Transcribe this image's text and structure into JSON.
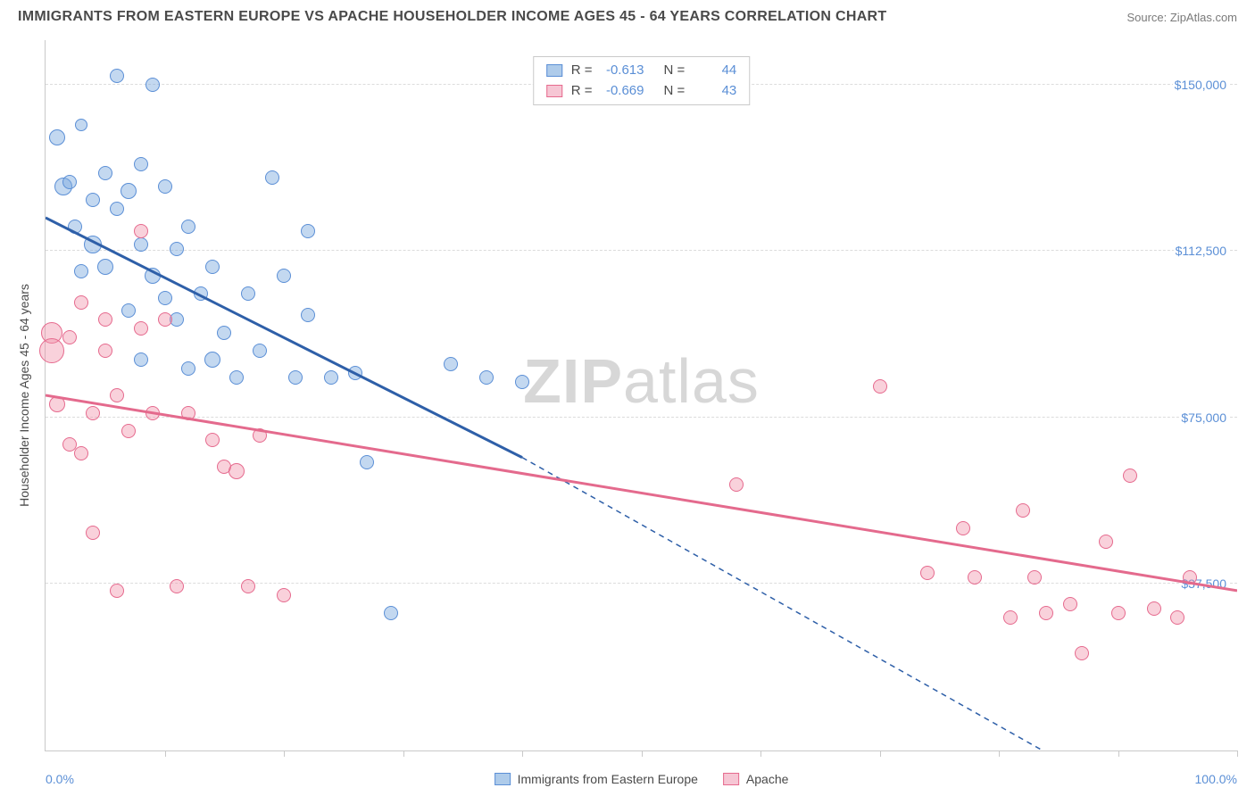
{
  "title": "IMMIGRANTS FROM EASTERN EUROPE VS APACHE HOUSEHOLDER INCOME AGES 45 - 64 YEARS CORRELATION CHART",
  "source_label": "Source: ZipAtlas.com",
  "watermark": {
    "bold": "ZIP",
    "rest": "atlas"
  },
  "chart": {
    "type": "scatter",
    "background_color": "#ffffff",
    "grid_color": "#dcdcdc",
    "axis_color": "#c9c9c9",
    "label_color": "#5b8fd6",
    "text_color": "#4a4a4a",
    "x": {
      "min": 0,
      "max": 100,
      "ticks_pct": [
        10,
        20,
        30,
        40,
        50,
        60,
        70,
        80,
        90,
        100
      ],
      "start_label": "0.0%",
      "end_label": "100.0%"
    },
    "y": {
      "min": 0,
      "max": 160000,
      "gridlines": [
        {
          "value": 150000,
          "label": "$150,000"
        },
        {
          "value": 112500,
          "label": "$112,500"
        },
        {
          "value": 75000,
          "label": "$75,000"
        },
        {
          "value": 37500,
          "label": "$37,500"
        }
      ],
      "title": "Householder Income Ages 45 - 64 years"
    },
    "top_legend": [
      {
        "swatch_fill": "#aecbea",
        "swatch_stroke": "#5b8fd6",
        "r_label": "R =",
        "r_value": "-0.613",
        "n_label": "N =",
        "n_value": "44"
      },
      {
        "swatch_fill": "#f6c6d4",
        "swatch_stroke": "#e66a8e",
        "r_label": "R =",
        "r_value": "-0.669",
        "n_label": "N =",
        "n_value": "43"
      }
    ],
    "bottom_legend": [
      {
        "swatch_fill": "#aecbea",
        "swatch_stroke": "#5b8fd6",
        "label": "Immigrants from Eastern Europe"
      },
      {
        "swatch_fill": "#f6c6d4",
        "swatch_stroke": "#e66a8e",
        "label": "Apache"
      }
    ],
    "regression_lines": [
      {
        "series": "blue",
        "color": "#2e5fa8",
        "width": 3,
        "x1": 0,
        "y1": 120000,
        "x2_solid": 40,
        "y2_solid": 66000,
        "x2_dash": 85,
        "y2_dash": -2000
      },
      {
        "series": "pink",
        "color": "#e46a8d",
        "width": 3,
        "x1": 0,
        "y1": 80000,
        "x2_solid": 100,
        "y2_solid": 36000
      }
    ],
    "series": [
      {
        "name": "Immigrants from Eastern Europe",
        "fill": "rgba(121,169,221,0.45)",
        "stroke": "#5b8fd6",
        "points": [
          {
            "x": 1,
            "y": 138000,
            "r": 9
          },
          {
            "x": 1.5,
            "y": 127000,
            "r": 10
          },
          {
            "x": 2,
            "y": 128000,
            "r": 8
          },
          {
            "x": 2.5,
            "y": 118000,
            "r": 8
          },
          {
            "x": 3,
            "y": 141000,
            "r": 7
          },
          {
            "x": 3,
            "y": 108000,
            "r": 8
          },
          {
            "x": 4,
            "y": 124000,
            "r": 8
          },
          {
            "x": 4,
            "y": 114000,
            "r": 10
          },
          {
            "x": 5,
            "y": 130000,
            "r": 8
          },
          {
            "x": 5,
            "y": 109000,
            "r": 9
          },
          {
            "x": 6,
            "y": 152000,
            "r": 8
          },
          {
            "x": 6,
            "y": 122000,
            "r": 8
          },
          {
            "x": 7,
            "y": 126000,
            "r": 9
          },
          {
            "x": 7,
            "y": 99000,
            "r": 8
          },
          {
            "x": 8,
            "y": 114000,
            "r": 8
          },
          {
            "x": 8,
            "y": 132000,
            "r": 8
          },
          {
            "x": 8,
            "y": 88000,
            "r": 8
          },
          {
            "x": 9,
            "y": 150000,
            "r": 8
          },
          {
            "x": 9,
            "y": 107000,
            "r": 9
          },
          {
            "x": 10,
            "y": 127000,
            "r": 8
          },
          {
            "x": 10,
            "y": 102000,
            "r": 8
          },
          {
            "x": 11,
            "y": 113000,
            "r": 8
          },
          {
            "x": 11,
            "y": 97000,
            "r": 8
          },
          {
            "x": 12,
            "y": 86000,
            "r": 8
          },
          {
            "x": 12,
            "y": 118000,
            "r": 8
          },
          {
            "x": 13,
            "y": 103000,
            "r": 8
          },
          {
            "x": 14,
            "y": 109000,
            "r": 8
          },
          {
            "x": 14,
            "y": 88000,
            "r": 9
          },
          {
            "x": 15,
            "y": 94000,
            "r": 8
          },
          {
            "x": 16,
            "y": 84000,
            "r": 8
          },
          {
            "x": 17,
            "y": 103000,
            "r": 8
          },
          {
            "x": 18,
            "y": 90000,
            "r": 8
          },
          {
            "x": 19,
            "y": 129000,
            "r": 8
          },
          {
            "x": 20,
            "y": 107000,
            "r": 8
          },
          {
            "x": 21,
            "y": 84000,
            "r": 8
          },
          {
            "x": 22,
            "y": 117000,
            "r": 8
          },
          {
            "x": 22,
            "y": 98000,
            "r": 8
          },
          {
            "x": 24,
            "y": 84000,
            "r": 8
          },
          {
            "x": 26,
            "y": 85000,
            "r": 8
          },
          {
            "x": 27,
            "y": 65000,
            "r": 8
          },
          {
            "x": 29,
            "y": 31000,
            "r": 8
          },
          {
            "x": 34,
            "y": 87000,
            "r": 8
          },
          {
            "x": 37,
            "y": 84000,
            "r": 8
          },
          {
            "x": 40,
            "y": 83000,
            "r": 8
          }
        ]
      },
      {
        "name": "Apache",
        "fill": "rgba(239,140,166,0.40)",
        "stroke": "#e66a8e",
        "points": [
          {
            "x": 0.5,
            "y": 94000,
            "r": 12
          },
          {
            "x": 0.5,
            "y": 90000,
            "r": 14
          },
          {
            "x": 1,
            "y": 78000,
            "r": 9
          },
          {
            "x": 2,
            "y": 93000,
            "r": 8
          },
          {
            "x": 2,
            "y": 69000,
            "r": 8
          },
          {
            "x": 3,
            "y": 67000,
            "r": 8
          },
          {
            "x": 3,
            "y": 101000,
            "r": 8
          },
          {
            "x": 4,
            "y": 76000,
            "r": 8
          },
          {
            "x": 4,
            "y": 49000,
            "r": 8
          },
          {
            "x": 5,
            "y": 97000,
            "r": 8
          },
          {
            "x": 5,
            "y": 90000,
            "r": 8
          },
          {
            "x": 6,
            "y": 80000,
            "r": 8
          },
          {
            "x": 6,
            "y": 36000,
            "r": 8
          },
          {
            "x": 7,
            "y": 72000,
            "r": 8
          },
          {
            "x": 8,
            "y": 95000,
            "r": 8
          },
          {
            "x": 8,
            "y": 117000,
            "r": 8
          },
          {
            "x": 9,
            "y": 76000,
            "r": 8
          },
          {
            "x": 10,
            "y": 97000,
            "r": 8
          },
          {
            "x": 11,
            "y": 37000,
            "r": 8
          },
          {
            "x": 12,
            "y": 76000,
            "r": 8
          },
          {
            "x": 14,
            "y": 70000,
            "r": 8
          },
          {
            "x": 15,
            "y": 64000,
            "r": 8
          },
          {
            "x": 16,
            "y": 63000,
            "r": 9
          },
          {
            "x": 17,
            "y": 37000,
            "r": 8
          },
          {
            "x": 18,
            "y": 71000,
            "r": 8
          },
          {
            "x": 20,
            "y": 35000,
            "r": 8
          },
          {
            "x": 58,
            "y": 60000,
            "r": 8
          },
          {
            "x": 70,
            "y": 82000,
            "r": 8
          },
          {
            "x": 74,
            "y": 40000,
            "r": 8
          },
          {
            "x": 77,
            "y": 50000,
            "r": 8
          },
          {
            "x": 78,
            "y": 39000,
            "r": 8
          },
          {
            "x": 81,
            "y": 30000,
            "r": 8
          },
          {
            "x": 82,
            "y": 54000,
            "r": 8
          },
          {
            "x": 83,
            "y": 39000,
            "r": 8
          },
          {
            "x": 84,
            "y": 31000,
            "r": 8
          },
          {
            "x": 86,
            "y": 33000,
            "r": 8
          },
          {
            "x": 87,
            "y": 22000,
            "r": 8
          },
          {
            "x": 89,
            "y": 47000,
            "r": 8
          },
          {
            "x": 90,
            "y": 31000,
            "r": 8
          },
          {
            "x": 91,
            "y": 62000,
            "r": 8
          },
          {
            "x": 93,
            "y": 32000,
            "r": 8
          },
          {
            "x": 95,
            "y": 30000,
            "r": 8
          },
          {
            "x": 96,
            "y": 39000,
            "r": 8
          }
        ]
      }
    ]
  }
}
